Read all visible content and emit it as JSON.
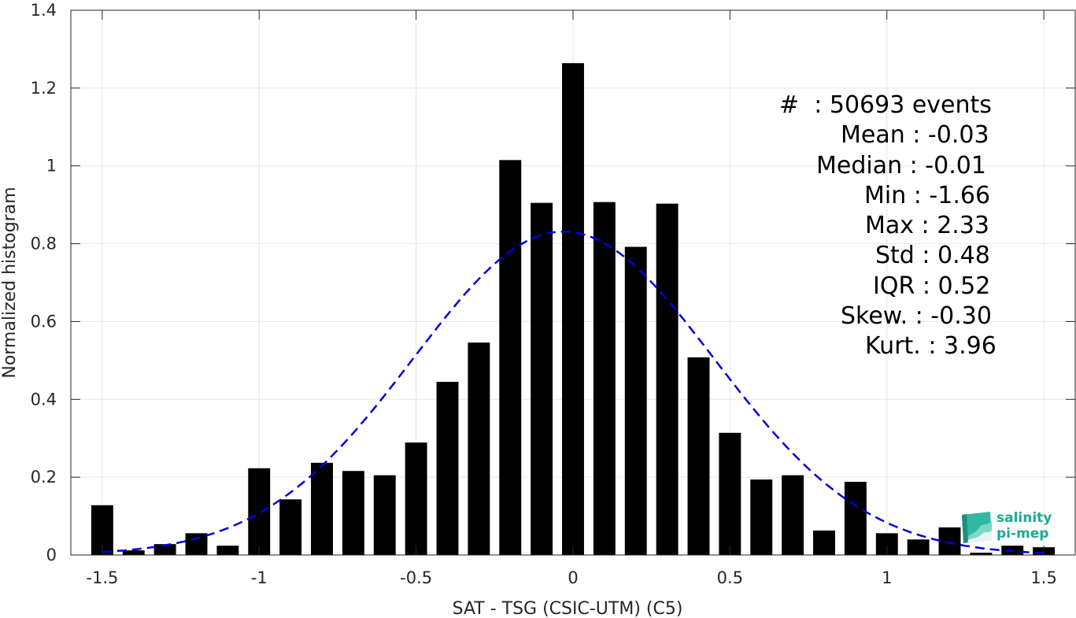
{
  "chart_data": {
    "type": "bar",
    "xlabel": "SAT - TSG (CSIC-UTM) (C5)",
    "ylabel": "Normalized histogram",
    "xlim": [
      -1.6,
      1.6
    ],
    "ylim": [
      0,
      1.4
    ],
    "xticks": [
      -1.5,
      -1,
      -0.5,
      0,
      0.5,
      1,
      1.5
    ],
    "xtick_labels": [
      "-1.5",
      "-1",
      "-0.5",
      "0",
      "0.5",
      "1",
      "1.5"
    ],
    "yticks": [
      0,
      0.2,
      0.4,
      0.6,
      0.8,
      1,
      1.2,
      1.4
    ],
    "ytick_labels": [
      "0",
      "0.2",
      "0.4",
      "0.6",
      "0.8",
      "1",
      "1.2",
      "1.4"
    ],
    "grid": true,
    "bin_width": 0.1,
    "bars": [
      {
        "x": -1.5,
        "y": 0.128
      },
      {
        "x": -1.4,
        "y": 0.012
      },
      {
        "x": -1.3,
        "y": 0.028
      },
      {
        "x": -1.2,
        "y": 0.056
      },
      {
        "x": -1.1,
        "y": 0.024
      },
      {
        "x": -1.0,
        "y": 0.223
      },
      {
        "x": -0.9,
        "y": 0.143
      },
      {
        "x": -0.8,
        "y": 0.237
      },
      {
        "x": -0.7,
        "y": 0.216
      },
      {
        "x": -0.6,
        "y": 0.205
      },
      {
        "x": -0.5,
        "y": 0.289
      },
      {
        "x": -0.4,
        "y": 0.445
      },
      {
        "x": -0.3,
        "y": 0.546
      },
      {
        "x": -0.2,
        "y": 1.015
      },
      {
        "x": -0.1,
        "y": 0.905
      },
      {
        "x": 0.0,
        "y": 1.264
      },
      {
        "x": 0.1,
        "y": 0.907
      },
      {
        "x": 0.2,
        "y": 0.792
      },
      {
        "x": 0.3,
        "y": 0.903
      },
      {
        "x": 0.4,
        "y": 0.508
      },
      {
        "x": 0.5,
        "y": 0.314
      },
      {
        "x": 0.6,
        "y": 0.194
      },
      {
        "x": 0.7,
        "y": 0.205
      },
      {
        "x": 0.8,
        "y": 0.063
      },
      {
        "x": 0.9,
        "y": 0.188
      },
      {
        "x": 1.0,
        "y": 0.056
      },
      {
        "x": 1.1,
        "y": 0.04
      },
      {
        "x": 1.2,
        "y": 0.071
      },
      {
        "x": 1.3,
        "y": 0.006
      },
      {
        "x": 1.4,
        "y": 0.024
      },
      {
        "x": 1.5,
        "y": 0.02
      }
    ],
    "fit_curve": {
      "type": "gaussian",
      "mean": -0.03,
      "std": 0.48,
      "x_range": [
        -1.5,
        1.5
      ],
      "color": "#0000dd",
      "style": "dashed"
    },
    "bar_color": "#000000"
  },
  "stats": [
    "#  : 50693 events",
    "Mean : -0.03",
    "Median : -0.01",
    "Min : -1.66",
    "Max : 2.33",
    "Std : 0.48",
    "IQR : 0.52",
    "Skew. : -0.30",
    "Kurt. : 3.96"
  ],
  "logo": {
    "line1": "salinity",
    "line2": "pi-mep",
    "color": "#1fa990"
  }
}
